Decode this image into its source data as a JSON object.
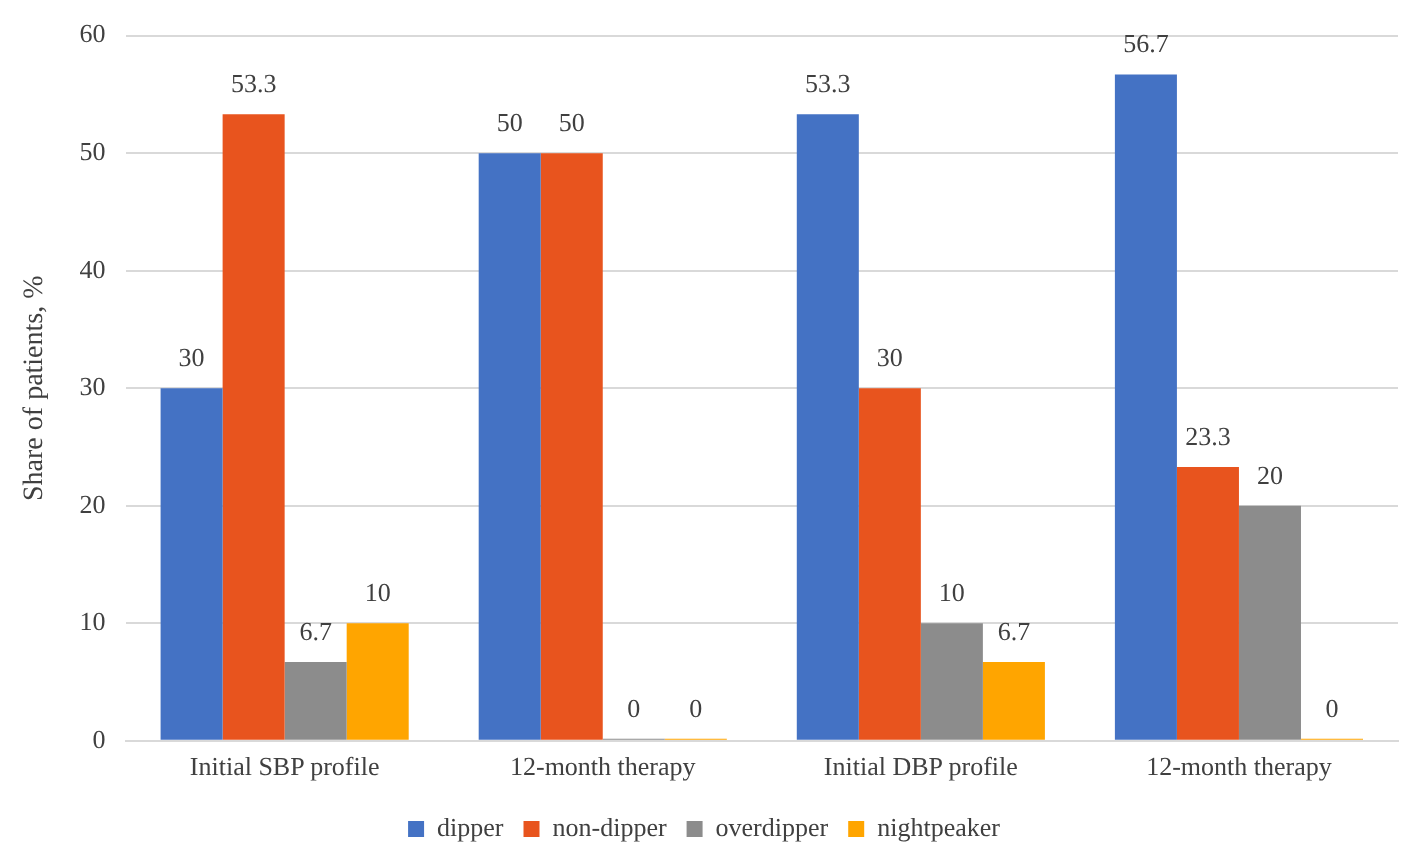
{
  "chart_data": {
    "type": "bar",
    "ylabel": "Share of patients, %",
    "categories": [
      "Initial SBP profile",
      "12-month therapy",
      "Initial DBP profile",
      "12-month therapy"
    ],
    "series": [
      {
        "name": "dipper",
        "color": "#4472c4",
        "values": [
          30,
          50,
          53.3,
          56.7
        ]
      },
      {
        "name": "non-dipper",
        "color": "#e8541e",
        "values": [
          53.3,
          50,
          30,
          23.3
        ]
      },
      {
        "name": "overdipper",
        "color": "#8c8c8c",
        "values": [
          6.7,
          0,
          10,
          20
        ]
      },
      {
        "name": "nightpeaker",
        "color": "#ffa500",
        "values": [
          10,
          0,
          6.7,
          0
        ]
      }
    ],
    "ylim": [
      0,
      60
    ],
    "yticks": [
      0,
      10,
      20,
      30,
      40,
      50,
      60
    ],
    "grid": "y",
    "legend": "bottom",
    "data_labels": true
  }
}
